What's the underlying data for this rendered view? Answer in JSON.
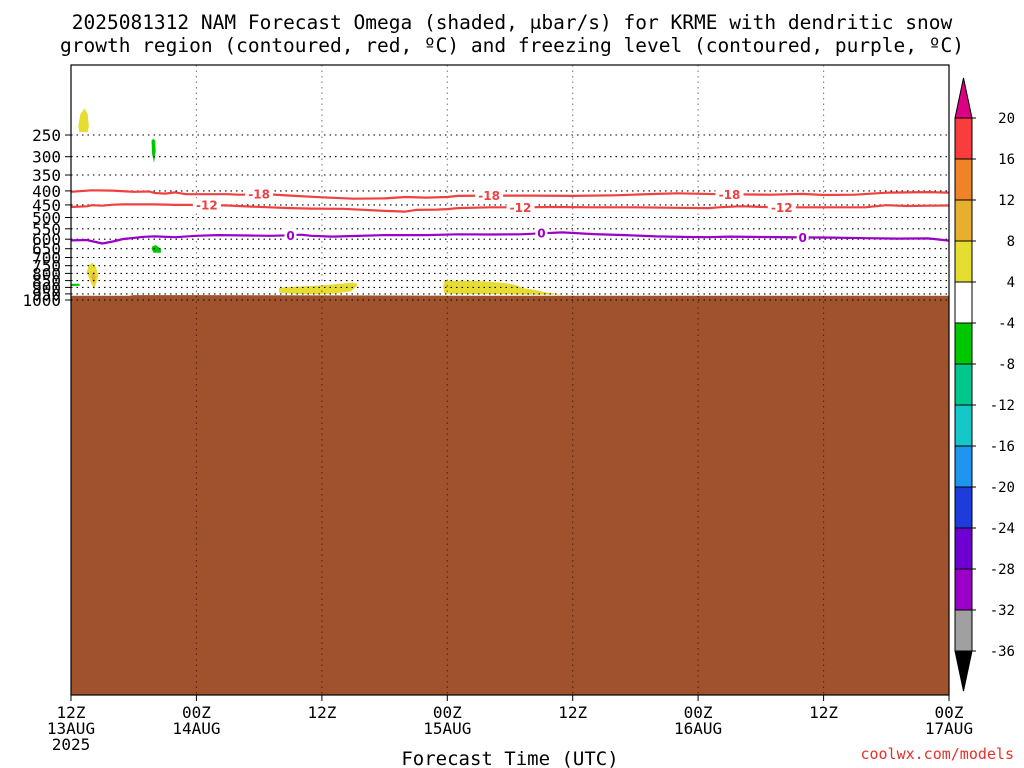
{
  "title": {
    "line1": "2025081312 NAM Forecast Omega (shaded, μbar/s) for KRME with dendritic snow",
    "line2": "growth region (contoured, red, ºC) and freezing level (contoured, purple, ºC)"
  },
  "credit": "coolwx.com/models",
  "chart_data": {
    "type": "heatmap",
    "title": "2025081312 NAM Forecast Omega (shaded, μbar/s) for KRME with dendritic snow growth region (contoured, red, ºC) and freezing level (contoured, purple, ºC)",
    "xlabel": "Forecast Time (UTC)",
    "ylabel": "",
    "x_unit": "hours since 2025-08-13 12Z",
    "x_range": [
      0,
      84
    ],
    "y_range_hPa": [
      200,
      1050
    ],
    "y_scale": "log-pressure, inverted",
    "x_ticks": [
      {
        "x": 0,
        "l1": "12Z",
        "l2": "13AUG",
        "l3": "2025"
      },
      {
        "x": 12,
        "l1": "00Z",
        "l2": "14AUG",
        "l3": ""
      },
      {
        "x": 24,
        "l1": "12Z",
        "l2": "",
        "l3": ""
      },
      {
        "x": 36,
        "l1": "00Z",
        "l2": "15AUG",
        "l3": ""
      },
      {
        "x": 48,
        "l1": "12Z",
        "l2": "",
        "l3": ""
      },
      {
        "x": 60,
        "l1": "00Z",
        "l2": "16AUG",
        "l3": ""
      },
      {
        "x": 72,
        "l1": "12Z",
        "l2": "",
        "l3": ""
      },
      {
        "x": 84,
        "l1": "00Z",
        "l2": "17AUG",
        "l3": ""
      }
    ],
    "y_ticks": [
      250,
      300,
      350,
      400,
      450,
      500,
      550,
      600,
      650,
      700,
      750,
      800,
      850,
      900,
      950,
      1000
    ],
    "grid": true,
    "colorbar": {
      "levels": [
        -36,
        -32,
        -28,
        -24,
        -20,
        -16,
        -12,
        -8,
        -4,
        4,
        8,
        12,
        16,
        20
      ],
      "colors": [
        "#000000",
        "#a0a0a0",
        "#9a00c8",
        "#6e00d2",
        "#1e3cdc",
        "#1e96f0",
        "#14c8c8",
        "#00c88c",
        "#00c800",
        "#ffffff",
        "#e6dc32",
        "#e6af2d",
        "#f08228",
        "#fa3c3c",
        "#dc0082"
      ],
      "placement": "right"
    },
    "omega_patches": [
      {
        "color": "#e6dc32",
        "points": [
          [
            0.7,
            233
          ],
          [
            0.9,
            210
          ],
          [
            1.3,
            200
          ],
          [
            1.6,
            210
          ],
          [
            1.7,
            232
          ],
          [
            1.6,
            244
          ],
          [
            0.8,
            244
          ]
        ]
      },
      {
        "color": "#00c800",
        "points": [
          [
            7.85,
            258
          ],
          [
            8.05,
            262
          ],
          [
            8.1,
            285
          ],
          [
            7.95,
            316
          ],
          [
            7.75,
            292
          ],
          [
            7.7,
            262
          ]
        ]
      },
      {
        "color": "#00c800",
        "points": [
          [
            7.8,
            637
          ],
          [
            8.1,
            630
          ],
          [
            8.6,
            650
          ],
          [
            8.6,
            672
          ],
          [
            7.9,
            672
          ],
          [
            7.7,
            650
          ]
        ]
      },
      {
        "color": "#00c800",
        "points": [
          [
            -0.2,
            873
          ],
          [
            0.8,
            873
          ],
          [
            0.85,
            888
          ],
          [
            -0.2,
            890
          ]
        ]
      },
      {
        "color": "#e6dc32",
        "points": [
          [
            1.7,
            748
          ],
          [
            2.0,
            730
          ],
          [
            2.4,
            760
          ],
          [
            2.6,
            820
          ],
          [
            2.4,
            870
          ],
          [
            2.2,
            915
          ],
          [
            2.0,
            880
          ],
          [
            1.7,
            830
          ],
          [
            1.5,
            790
          ]
        ]
      },
      {
        "color": "#e6af2d",
        "points": [
          [
            2.0,
            800
          ],
          [
            2.2,
            790
          ],
          [
            2.35,
            830
          ],
          [
            2.2,
            865
          ],
          [
            2.05,
            850
          ],
          [
            1.95,
            825
          ]
        ]
      },
      {
        "color": "#e6dc32",
        "points": [
          [
            19.9,
            902
          ],
          [
            21.3,
            896
          ],
          [
            23.5,
            888
          ],
          [
            25.2,
            876
          ],
          [
            26.9,
            864
          ],
          [
            27.4,
            872
          ],
          [
            27.3,
            895
          ],
          [
            26.8,
            930
          ],
          [
            25.5,
            945
          ],
          [
            24.0,
            952
          ],
          [
            22.0,
            952
          ],
          [
            21.0,
            947
          ],
          [
            19.9,
            940
          ]
        ]
      },
      {
        "color": "#e6dc32",
        "points": [
          [
            35.7,
            851
          ],
          [
            37.3,
            851
          ],
          [
            38.8,
            853
          ],
          [
            40.1,
            858
          ],
          [
            41.6,
            868
          ],
          [
            42.6,
            884
          ],
          [
            43.3,
            905
          ],
          [
            44.5,
            922
          ],
          [
            45.2,
            935
          ],
          [
            46.3,
            947
          ],
          [
            47.0,
            954
          ],
          [
            44.8,
            957
          ],
          [
            42.3,
            955
          ],
          [
            39.3,
            951
          ],
          [
            36.6,
            950
          ],
          [
            35.7,
            945
          ],
          [
            35.6,
            900
          ]
        ]
      }
    ],
    "ground": {
      "color": "#a0522d",
      "pressure_hPa": [
        [
          0,
          965
        ],
        [
          5.6,
          965
        ],
        [
          6,
          960
        ],
        [
          12,
          960
        ],
        [
          25,
          962
        ],
        [
          38,
          965
        ],
        [
          50,
          965
        ],
        [
          62,
          966
        ],
        [
          84,
          966
        ]
      ]
    },
    "contours": [
      {
        "value": -18,
        "label": "-18",
        "color": "#f04040",
        "points": [
          [
            0,
            403
          ],
          [
            2,
            398
          ],
          [
            4,
            399
          ],
          [
            6,
            403
          ],
          [
            7.5,
            402
          ],
          [
            8,
            407
          ],
          [
            9,
            409
          ],
          [
            10,
            405
          ],
          [
            11,
            411
          ],
          [
            15,
            411
          ],
          [
            16,
            413
          ],
          [
            19,
            412
          ],
          [
            21,
            416
          ],
          [
            24,
            422
          ],
          [
            27,
            427
          ],
          [
            30,
            426
          ],
          [
            32,
            421
          ],
          [
            34,
            423
          ],
          [
            36,
            421
          ],
          [
            37,
            417
          ],
          [
            40,
            416
          ],
          [
            44,
            416
          ],
          [
            48,
            417
          ],
          [
            52,
            415
          ],
          [
            56,
            410
          ],
          [
            58,
            408
          ],
          [
            62,
            411
          ],
          [
            64,
            412
          ],
          [
            67,
            413
          ],
          [
            70,
            410
          ],
          [
            72,
            414
          ],
          [
            75,
            413
          ],
          [
            78,
            406
          ],
          [
            82,
            404
          ],
          [
            84,
            406
          ]
        ],
        "labels": [
          [
            18,
            411
          ],
          [
            40,
            416
          ],
          [
            63,
            412
          ]
        ]
      },
      {
        "value": -12,
        "label": "-12",
        "color": "#f04040",
        "points": [
          [
            0,
            458
          ],
          [
            1.5,
            455
          ],
          [
            2,
            451
          ],
          [
            3,
            453
          ],
          [
            4,
            449
          ],
          [
            5,
            448
          ],
          [
            8,
            448
          ],
          [
            10,
            450
          ],
          [
            12,
            450
          ],
          [
            15,
            452
          ],
          [
            17,
            456
          ],
          [
            21,
            462
          ],
          [
            23,
            464
          ],
          [
            26,
            465
          ],
          [
            30,
            473
          ],
          [
            32,
            476
          ],
          [
            33,
            469
          ],
          [
            35,
            468
          ],
          [
            36,
            466
          ],
          [
            37,
            462
          ],
          [
            40,
            459
          ],
          [
            43,
            459
          ],
          [
            46,
            458
          ],
          [
            50,
            459
          ],
          [
            54,
            459
          ],
          [
            58,
            461
          ],
          [
            61,
            462
          ],
          [
            62,
            459
          ],
          [
            64,
            455
          ],
          [
            65,
            456
          ],
          [
            67,
            459
          ],
          [
            70,
            459
          ],
          [
            74,
            459
          ],
          [
            76,
            459
          ],
          [
            78,
            451
          ],
          [
            80,
            454
          ],
          [
            82,
            453
          ],
          [
            84,
            452
          ]
        ],
        "labels": [
          [
            13,
            451
          ],
          [
            43,
            459
          ],
          [
            68,
            459
          ]
        ]
      },
      {
        "value": 0,
        "label": "0",
        "color": "#9a00c8",
        "points": [
          [
            0,
            606
          ],
          [
            1.5,
            604
          ],
          [
            3,
            622
          ],
          [
            4,
            612
          ],
          [
            5,
            599
          ],
          [
            7,
            588
          ],
          [
            8,
            586
          ],
          [
            10,
            590
          ],
          [
            12,
            583
          ],
          [
            14,
            580
          ],
          [
            17,
            582
          ],
          [
            19,
            583
          ],
          [
            21,
            581
          ],
          [
            22,
            578
          ],
          [
            23,
            583
          ],
          [
            25,
            587
          ],
          [
            27,
            584
          ],
          [
            30,
            580
          ],
          [
            34,
            580
          ],
          [
            37,
            576
          ],
          [
            40,
            577
          ],
          [
            43,
            576
          ],
          [
            45,
            571
          ],
          [
            47,
            567
          ],
          [
            50,
            575
          ],
          [
            53,
            580
          ],
          [
            56,
            586
          ],
          [
            59,
            589
          ],
          [
            61,
            590
          ],
          [
            63,
            587
          ],
          [
            66,
            589
          ],
          [
            70,
            591
          ],
          [
            73,
            592
          ],
          [
            76,
            595
          ],
          [
            79,
            597
          ],
          [
            82,
            596
          ],
          [
            84,
            607
          ]
        ],
        "labels": [
          [
            21,
            581
          ],
          [
            45,
            569
          ],
          [
            70,
            591
          ]
        ]
      }
    ]
  }
}
